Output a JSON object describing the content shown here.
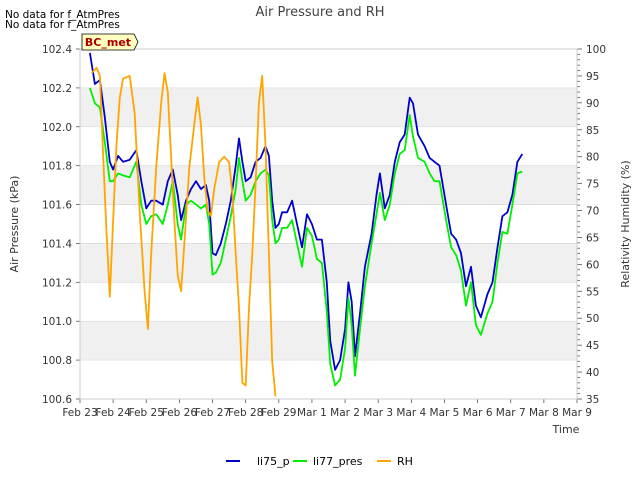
{
  "notes": [
    "No data for f_AtmPres",
    "No data for f_AtmPres"
  ],
  "badge": "BC_met",
  "chart_data": {
    "type": "line",
    "title": "Air Pressure and RH",
    "xlabel": "Time",
    "ylabel_left": "Air Pressure (kPa)",
    "ylabel_right": "Relativity Humidity (%)",
    "x_ticks": [
      "Feb 23",
      "Feb 24",
      "Feb 25",
      "Feb 26",
      "Feb 27",
      "Feb 28",
      "Feb 29",
      "Mar 1",
      "Mar 2",
      "Mar 3",
      "Mar 4",
      "Mar 5",
      "Mar 6",
      "Mar 7",
      "Mar 8",
      "Mar 9"
    ],
    "x_range_days": [
      0,
      15
    ],
    "ylim_left": [
      100.6,
      102.4
    ],
    "ylim_right": [
      35,
      100
    ],
    "yticks_left": [
      "100.6",
      "100.8",
      "101.0",
      "101.2",
      "101.4",
      "101.6",
      "101.8",
      "102.0",
      "102.2",
      "102.4"
    ],
    "yticks_right": [
      "35",
      "40",
      "45",
      "50",
      "55",
      "60",
      "65",
      "70",
      "75",
      "80",
      "85",
      "90",
      "95",
      "100"
    ],
    "grid": "horizontal bands",
    "legend_position": "bottom-center",
    "series": [
      {
        "name": "li75_p",
        "axis": "left",
        "color": "#0000cc",
        "points": [
          [
            0.3,
            102.38
          ],
          [
            0.45,
            102.22
          ],
          [
            0.6,
            102.24
          ],
          [
            0.75,
            102.05
          ],
          [
            0.9,
            101.82
          ],
          [
            1.0,
            101.78
          ],
          [
            1.15,
            101.85
          ],
          [
            1.3,
            101.82
          ],
          [
            1.5,
            101.83
          ],
          [
            1.7,
            101.88
          ],
          [
            1.85,
            101.72
          ],
          [
            2.0,
            101.58
          ],
          [
            2.15,
            101.62
          ],
          [
            2.3,
            101.62
          ],
          [
            2.5,
            101.6
          ],
          [
            2.65,
            101.72
          ],
          [
            2.8,
            101.78
          ],
          [
            2.95,
            101.65
          ],
          [
            3.05,
            101.52
          ],
          [
            3.2,
            101.62
          ],
          [
            3.35,
            101.68
          ],
          [
            3.5,
            101.72
          ],
          [
            3.65,
            101.68
          ],
          [
            3.8,
            101.7
          ],
          [
            3.9,
            101.62
          ],
          [
            4.0,
            101.35
          ],
          [
            4.1,
            101.34
          ],
          [
            4.25,
            101.4
          ],
          [
            4.4,
            101.5
          ],
          [
            4.55,
            101.62
          ],
          [
            4.7,
            101.8
          ],
          [
            4.8,
            101.94
          ],
          [
            4.9,
            101.82
          ],
          [
            5.0,
            101.72
          ],
          [
            5.15,
            101.74
          ],
          [
            5.3,
            101.82
          ],
          [
            5.45,
            101.84
          ],
          [
            5.6,
            101.9
          ],
          [
            5.7,
            101.85
          ],
          [
            5.8,
            101.62
          ],
          [
            5.9,
            101.48
          ],
          [
            6.0,
            101.5
          ],
          [
            6.1,
            101.56
          ],
          [
            6.25,
            101.56
          ],
          [
            6.4,
            101.62
          ],
          [
            6.55,
            101.5
          ],
          [
            6.7,
            101.38
          ],
          [
            6.85,
            101.55
          ],
          [
            7.0,
            101.5
          ],
          [
            7.15,
            101.42
          ],
          [
            7.3,
            101.42
          ],
          [
            7.45,
            101.2
          ],
          [
            7.55,
            100.9
          ],
          [
            7.7,
            100.75
          ],
          [
            7.85,
            100.8
          ],
          [
            8.0,
            100.96
          ],
          [
            8.1,
            101.2
          ],
          [
            8.2,
            101.1
          ],
          [
            8.3,
            100.82
          ],
          [
            8.45,
            101.04
          ],
          [
            8.6,
            101.28
          ],
          [
            8.8,
            101.45
          ],
          [
            8.95,
            101.65
          ],
          [
            9.05,
            101.76
          ],
          [
            9.2,
            101.58
          ],
          [
            9.35,
            101.65
          ],
          [
            9.5,
            101.82
          ],
          [
            9.65,
            101.92
          ],
          [
            9.8,
            101.96
          ],
          [
            9.95,
            102.15
          ],
          [
            10.05,
            102.12
          ],
          [
            10.2,
            101.96
          ],
          [
            10.4,
            101.9
          ],
          [
            10.55,
            101.84
          ],
          [
            10.7,
            101.82
          ],
          [
            10.85,
            101.8
          ],
          [
            11.05,
            101.6
          ],
          [
            11.2,
            101.45
          ],
          [
            11.35,
            101.42
          ],
          [
            11.5,
            101.35
          ],
          [
            11.65,
            101.18
          ],
          [
            11.8,
            101.28
          ],
          [
            11.95,
            101.08
          ],
          [
            12.1,
            101.02
          ],
          [
            12.3,
            101.14
          ],
          [
            12.45,
            101.2
          ],
          [
            12.6,
            101.38
          ],
          [
            12.75,
            101.54
          ],
          [
            12.9,
            101.56
          ],
          [
            13.05,
            101.65
          ],
          [
            13.2,
            101.82
          ],
          [
            13.35,
            101.86
          ]
        ]
      },
      {
        "name": "li77_pres",
        "axis": "left",
        "color": "#00ee00",
        "points": [
          [
            0.3,
            102.2
          ],
          [
            0.45,
            102.12
          ],
          [
            0.6,
            102.1
          ],
          [
            0.75,
            101.92
          ],
          [
            0.9,
            101.72
          ],
          [
            1.0,
            101.72
          ],
          [
            1.15,
            101.76
          ],
          [
            1.3,
            101.75
          ],
          [
            1.5,
            101.74
          ],
          [
            1.7,
            101.82
          ],
          [
            1.85,
            101.6
          ],
          [
            2.0,
            101.5
          ],
          [
            2.15,
            101.54
          ],
          [
            2.3,
            101.55
          ],
          [
            2.5,
            101.5
          ],
          [
            2.65,
            101.6
          ],
          [
            2.8,
            101.72
          ],
          [
            2.95,
            101.5
          ],
          [
            3.05,
            101.42
          ],
          [
            3.2,
            101.6
          ],
          [
            3.35,
            101.62
          ],
          [
            3.5,
            101.6
          ],
          [
            3.65,
            101.58
          ],
          [
            3.8,
            101.6
          ],
          [
            3.9,
            101.5
          ],
          [
            4.0,
            101.24
          ],
          [
            4.1,
            101.25
          ],
          [
            4.25,
            101.3
          ],
          [
            4.4,
            101.42
          ],
          [
            4.55,
            101.54
          ],
          [
            4.7,
            101.68
          ],
          [
            4.8,
            101.84
          ],
          [
            4.9,
            101.72
          ],
          [
            5.0,
            101.62
          ],
          [
            5.15,
            101.65
          ],
          [
            5.3,
            101.72
          ],
          [
            5.45,
            101.76
          ],
          [
            5.6,
            101.78
          ],
          [
            5.7,
            101.75
          ],
          [
            5.8,
            101.52
          ],
          [
            5.9,
            101.4
          ],
          [
            6.0,
            101.42
          ],
          [
            6.1,
            101.48
          ],
          [
            6.25,
            101.48
          ],
          [
            6.4,
            101.52
          ],
          [
            6.55,
            101.4
          ],
          [
            6.7,
            101.28
          ],
          [
            6.85,
            101.48
          ],
          [
            7.0,
            101.44
          ],
          [
            7.15,
            101.32
          ],
          [
            7.3,
            101.3
          ],
          [
            7.45,
            101.05
          ],
          [
            7.55,
            100.78
          ],
          [
            7.7,
            100.67
          ],
          [
            7.85,
            100.7
          ],
          [
            8.0,
            100.86
          ],
          [
            8.1,
            101.12
          ],
          [
            8.2,
            100.98
          ],
          [
            8.3,
            100.72
          ],
          [
            8.45,
            100.96
          ],
          [
            8.6,
            101.18
          ],
          [
            8.8,
            101.4
          ],
          [
            8.95,
            101.55
          ],
          [
            9.05,
            101.66
          ],
          [
            9.2,
            101.52
          ],
          [
            9.35,
            101.6
          ],
          [
            9.5,
            101.76
          ],
          [
            9.65,
            101.86
          ],
          [
            9.8,
            101.88
          ],
          [
            9.95,
            102.06
          ],
          [
            10.05,
            101.95
          ],
          [
            10.2,
            101.84
          ],
          [
            10.4,
            101.82
          ],
          [
            10.55,
            101.76
          ],
          [
            10.7,
            101.72
          ],
          [
            10.85,
            101.72
          ],
          [
            11.05,
            101.52
          ],
          [
            11.2,
            101.38
          ],
          [
            11.35,
            101.34
          ],
          [
            11.5,
            101.26
          ],
          [
            11.65,
            101.08
          ],
          [
            11.8,
            101.2
          ],
          [
            11.95,
            100.98
          ],
          [
            12.1,
            100.93
          ],
          [
            12.3,
            101.04
          ],
          [
            12.45,
            101.1
          ],
          [
            12.6,
            101.3
          ],
          [
            12.75,
            101.46
          ],
          [
            12.9,
            101.45
          ],
          [
            13.05,
            101.6
          ],
          [
            13.2,
            101.76
          ],
          [
            13.35,
            101.77
          ]
        ]
      },
      {
        "name": "RH",
        "axis": "right",
        "color": "#ffa500",
        "points": [
          [
            0.35,
            95.5
          ],
          [
            0.5,
            96.5
          ],
          [
            0.6,
            95.0
          ],
          [
            0.7,
            80.0
          ],
          [
            0.8,
            66.0
          ],
          [
            0.9,
            54.0
          ],
          [
            1.0,
            68.0
          ],
          [
            1.1,
            82.0
          ],
          [
            1.2,
            91.0
          ],
          [
            1.3,
            94.5
          ],
          [
            1.5,
            95.0
          ],
          [
            1.65,
            88.0
          ],
          [
            1.8,
            70.0
          ],
          [
            1.95,
            55.0
          ],
          [
            2.05,
            48.0
          ],
          [
            2.15,
            62.0
          ],
          [
            2.3,
            78.0
          ],
          [
            2.45,
            90.0
          ],
          [
            2.55,
            95.5
          ],
          [
            2.65,
            92.0
          ],
          [
            2.75,
            80.0
          ],
          [
            2.85,
            68.0
          ],
          [
            2.95,
            58.0
          ],
          [
            3.05,
            55.0
          ],
          [
            3.15,
            64.0
          ],
          [
            3.3,
            78.0
          ],
          [
            3.45,
            86.0
          ],
          [
            3.55,
            91.0
          ],
          [
            3.65,
            86.0
          ],
          [
            3.75,
            76.0
          ],
          [
            3.85,
            70.0
          ],
          [
            3.95,
            69.0
          ],
          [
            4.05,
            74.0
          ],
          [
            4.2,
            79.0
          ],
          [
            4.35,
            80.0
          ],
          [
            4.5,
            79.0
          ],
          [
            4.6,
            73.0
          ],
          [
            4.7,
            62.0
          ],
          [
            4.8,
            52.0
          ],
          [
            4.9,
            38.0
          ],
          [
            5.0,
            37.5
          ],
          [
            5.1,
            52.0
          ],
          [
            5.2,
            62.0
          ],
          [
            5.3,
            75.0
          ],
          [
            5.4,
            90.0
          ],
          [
            5.5,
            95.0
          ],
          [
            5.6,
            82.0
          ],
          [
            5.7,
            62.0
          ],
          [
            5.8,
            42.0
          ],
          [
            5.9,
            35.5
          ]
        ]
      }
    ]
  }
}
